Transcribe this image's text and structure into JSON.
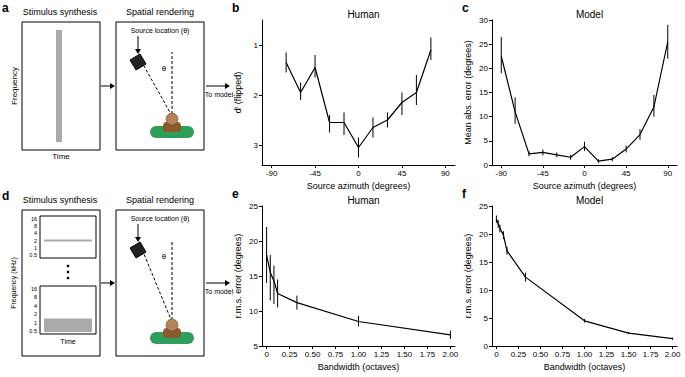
{
  "chart_data": [
    {
      "panel": "b",
      "type": "line",
      "title": "Human",
      "x_label": "Source azimuth (degrees)",
      "y_label": "d′ (flipped)",
      "x": [
        -75,
        -60,
        -45,
        -30,
        -15,
        0,
        15,
        30,
        45,
        60,
        75
      ],
      "values": [
        1.35,
        1.95,
        1.45,
        2.55,
        2.55,
        3.05,
        2.65,
        2.5,
        2.15,
        1.95,
        1.1
      ],
      "error_low": [
        1.15,
        1.75,
        1.2,
        2.4,
        2.35,
        2.85,
        2.45,
        2.35,
        1.95,
        1.6,
        0.85
      ],
      "error_high": [
        1.55,
        2.1,
        1.65,
        2.75,
        2.8,
        3.25,
        2.85,
        2.65,
        2.4,
        2.2,
        1.3
      ],
      "xlim": [
        -100,
        100
      ],
      "xticks": [
        -90,
        -45,
        0,
        45,
        90
      ],
      "ylim": [
        3.4,
        0.5
      ],
      "yticks": [
        1,
        2,
        3
      ],
      "color": "#000000",
      "marker": "none",
      "grid": false
    },
    {
      "panel": "c",
      "type": "line",
      "title": "Model",
      "x_label": "Source azimuth (degrees)",
      "y_label": "Mean abs. error (degrees)",
      "x": [
        -90,
        -75,
        -60,
        -45,
        -30,
        -15,
        0,
        15,
        30,
        45,
        60,
        75,
        90
      ],
      "values": [
        22.5,
        11,
        2.3,
        2.6,
        2.1,
        1.6,
        3.8,
        0.8,
        1.2,
        3.3,
        6.3,
        12,
        25.5
      ],
      "error_low": [
        19,
        8.5,
        1.8,
        2,
        1.6,
        1.1,
        2.9,
        0.4,
        0.8,
        2.6,
        5.2,
        10,
        22
      ],
      "error_high": [
        26.5,
        14,
        2.8,
        3.2,
        2.6,
        2.1,
        4.8,
        1.2,
        1.6,
        4,
        7.4,
        14.5,
        29
      ],
      "xlim": [
        -100,
        100
      ],
      "xticks": [
        -90,
        -45,
        0,
        45,
        90
      ],
      "ylim": [
        0,
        30
      ],
      "yticks": [
        0,
        5,
        10,
        15,
        20,
        25,
        30
      ],
      "color": "#000000",
      "marker": "none",
      "grid": false
    },
    {
      "panel": "e",
      "type": "line",
      "title": "Human",
      "x_label": "Bandwidth (octaves)",
      "y_label": "r.m.s. error (degrees)",
      "x": [
        0,
        0.04,
        0.08,
        0.12,
        0.33,
        1,
        2
      ],
      "values": [
        18,
        15.5,
        14.3,
        12.5,
        11.2,
        8.5,
        6.6
      ],
      "error_low": [
        14,
        11.5,
        11,
        10.5,
        10.2,
        7.8,
        6
      ],
      "error_high": [
        22,
        18,
        16.5,
        14.5,
        12.2,
        9.3,
        7.2
      ],
      "xlim": [
        -0.05,
        2.05
      ],
      "xticks": [
        0,
        0.25,
        {
          "value": 0.5,
          "label": "0.50"
        },
        0.75,
        {
          "value": 1,
          "label": "1.00"
        },
        1.25,
        {
          "value": 1.5,
          "label": "1.50"
        },
        1.75,
        {
          "value": 2,
          "label": "2.00"
        }
      ],
      "ylim": [
        5,
        25
      ],
      "yticks": [
        5,
        10,
        15,
        20,
        25
      ],
      "color": "#000000",
      "marker": "none",
      "grid": false
    },
    {
      "panel": "f",
      "type": "line",
      "title": "Model",
      "x_label": "Bandwidth (octaves)",
      "y_label": "r.m.s. error (degrees)",
      "x": [
        0,
        0.02,
        0.04,
        0.08,
        0.12,
        0.33,
        1,
        1.5,
        2
      ],
      "values": [
        22.7,
        21.8,
        21,
        19.8,
        17,
        12.3,
        4.5,
        2.3,
        1.3
      ],
      "error_low": [
        22,
        21.1,
        20.3,
        19.1,
        16.3,
        11.5,
        4.2,
        2.1,
        1.1
      ],
      "error_high": [
        23.3,
        22.5,
        21.7,
        20.5,
        17.7,
        13.1,
        4.8,
        2.5,
        1.5
      ],
      "xlim": [
        -0.05,
        2.05
      ],
      "xticks": [
        0,
        0.25,
        {
          "value": 0.5,
          "label": "0.50"
        },
        0.75,
        {
          "value": 1,
          "label": "1.00"
        },
        1.25,
        {
          "value": 1.5,
          "label": "1.50"
        },
        1.75,
        {
          "value": 2,
          "label": "2.00"
        }
      ],
      "ylim": [
        0,
        25
      ],
      "yticks": [
        0,
        5,
        10,
        15,
        20,
        25
      ],
      "color": "#000000",
      "marker": "none",
      "grid": false
    }
  ],
  "diagrams": [
    {
      "panel": "a",
      "synthesis_title": "Stimulus synthesis",
      "rendering_title": "Spatial rendering",
      "source_label": "Source location (θ)",
      "angle_label": "θ",
      "output_label": "To model",
      "y_label": "Frequency",
      "x_label": "Time"
    },
    {
      "panel": "d",
      "synthesis_title": "Stimulus synthesis",
      "rendering_title": "Spatial rendering",
      "source_label": "Source location (θ)",
      "angle_label": "θ",
      "output_label": "To model",
      "y_label": "Frequency (kHz)",
      "x_label": "Time",
      "freq_ticks": [
        16,
        8,
        4,
        2,
        1,
        0.5
      ]
    }
  ]
}
